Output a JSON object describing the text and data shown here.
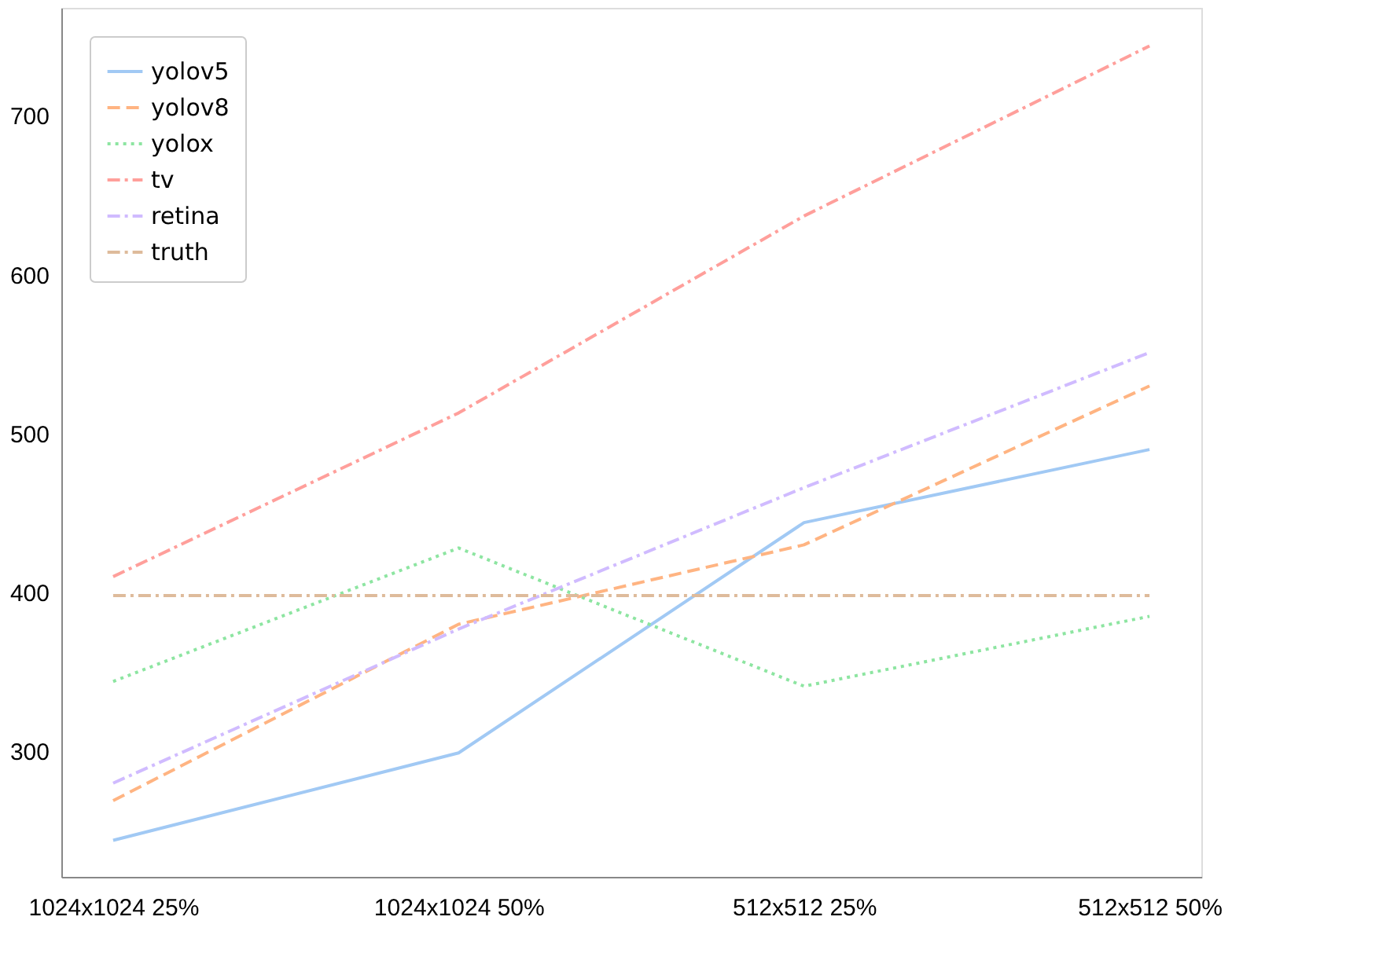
{
  "chart_data": {
    "type": "line",
    "categories": [
      "1024x1024 25%",
      "1024x1024 50%",
      "512x512 25%",
      "512x512 50%"
    ],
    "series": [
      {
        "name": "yolov5",
        "color": "#a1c9f4",
        "line_style": "solid",
        "values": [
          244,
          299,
          444,
          490
        ]
      },
      {
        "name": "yolov8",
        "color": "#ffb482",
        "line_style": "dashed",
        "values": [
          269,
          380,
          430,
          530
        ]
      },
      {
        "name": "yolox",
        "color": "#8de5a1",
        "line_style": "dotted",
        "values": [
          344,
          428,
          341,
          385
        ]
      },
      {
        "name": "tv",
        "color": "#ff9f9b",
        "line_style": "dashdot",
        "values": [
          410,
          513,
          637,
          744
        ]
      },
      {
        "name": "retina",
        "color": "#d0bbff",
        "line_style": "dashdot",
        "values": [
          280,
          377,
          466,
          551
        ]
      },
      {
        "name": "truth",
        "color": "#debb9b",
        "line_style": "dashdot",
        "values": [
          398,
          398,
          398,
          398
        ]
      }
    ],
    "ylim": [
      221,
      768
    ],
    "yticks": [
      300,
      400,
      500,
      600,
      700
    ],
    "grid": false,
    "legend": "top left",
    "marker": "none"
  }
}
